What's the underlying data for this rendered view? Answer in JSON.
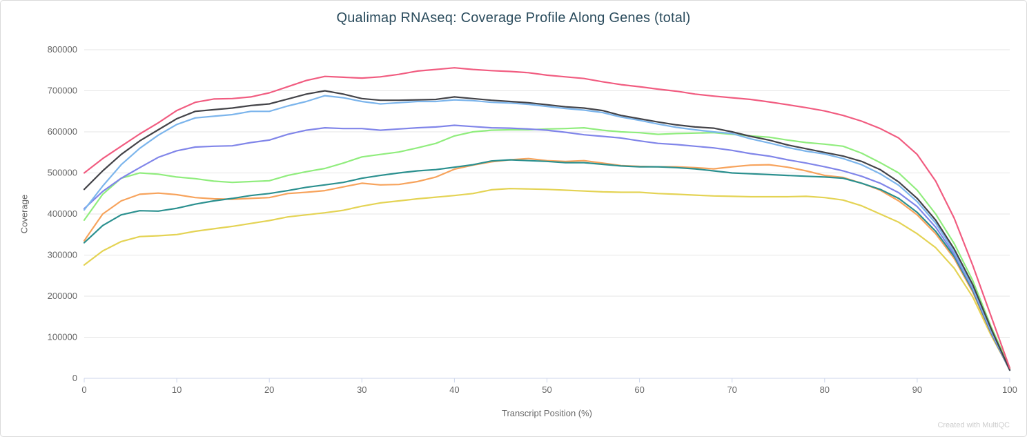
{
  "page": {
    "credit": "Created with MultiQC"
  },
  "chart_data": {
    "type": "line",
    "title": "Qualimap RNAseq: Coverage Profile Along Genes (total)",
    "xlabel": "Transcript Position (%)",
    "ylabel": "Coverage",
    "xlim": [
      0,
      100
    ],
    "ylim": [
      0,
      800000
    ],
    "xticks": [
      0,
      10,
      20,
      30,
      40,
      50,
      60,
      70,
      80,
      90,
      100
    ],
    "yticks": [
      0,
      100000,
      200000,
      300000,
      400000,
      500000,
      600000,
      700000,
      800000
    ],
    "grid": "horizontal",
    "legend": "none",
    "x": [
      0,
      2,
      4,
      6,
      8,
      10,
      12,
      14,
      16,
      18,
      20,
      22,
      24,
      26,
      28,
      30,
      32,
      34,
      36,
      38,
      40,
      42,
      44,
      46,
      48,
      50,
      52,
      54,
      56,
      58,
      60,
      62,
      64,
      66,
      68,
      70,
      72,
      74,
      76,
      78,
      80,
      82,
      84,
      86,
      88,
      90,
      92,
      94,
      96,
      98,
      100
    ],
    "series": [
      {
        "name": "yellow",
        "color": "#e4d354",
        "values": [
          276000,
          310000,
          333000,
          345000,
          347000,
          350000,
          358000,
          364000,
          370000,
          377000,
          384000,
          393000,
          398000,
          403000,
          409000,
          419000,
          427000,
          432000,
          437000,
          441000,
          445000,
          450000,
          459000,
          462000,
          461000,
          460000,
          458000,
          456000,
          454000,
          453000,
          453000,
          450000,
          448000,
          446000,
          444000,
          443000,
          442000,
          442000,
          442000,
          443000,
          440000,
          434000,
          420000,
          400000,
          380000,
          352000,
          318000,
          268000,
          198000,
          104000,
          22000
        ]
      },
      {
        "name": "orange",
        "color": "#f7a35c",
        "values": [
          335000,
          400000,
          432000,
          448000,
          451000,
          447000,
          440000,
          437000,
          436000,
          438000,
          440000,
          450000,
          453000,
          457000,
          466000,
          475000,
          471000,
          472000,
          479000,
          490000,
          509000,
          519000,
          527000,
          532000,
          535000,
          530000,
          528000,
          530000,
          524000,
          518000,
          516000,
          515000,
          515000,
          513000,
          510000,
          515000,
          519000,
          520000,
          514000,
          505000,
          494000,
          489000,
          475000,
          458000,
          432000,
          398000,
          352000,
          292000,
          210000,
          108000,
          20000
        ]
      },
      {
        "name": "teal",
        "color": "#2b908f",
        "values": [
          330000,
          372000,
          398000,
          408000,
          407000,
          414000,
          424000,
          432000,
          438000,
          445000,
          450000,
          457000,
          465000,
          471000,
          477000,
          487000,
          494000,
          500000,
          505000,
          508000,
          514000,
          520000,
          529000,
          532000,
          530000,
          528000,
          525000,
          525000,
          521000,
          517000,
          515000,
          515000,
          513000,
          510000,
          505000,
          500000,
          498000,
          496000,
          494000,
          492000,
          490000,
          487000,
          475000,
          460000,
          438000,
          404000,
          358000,
          297000,
          214000,
          110000,
          20000
        ]
      },
      {
        "name": "light-green",
        "color": "#90ed7d",
        "values": [
          385000,
          448000,
          487000,
          500000,
          497000,
          490000,
          486000,
          480000,
          477000,
          479000,
          481000,
          494000,
          503000,
          511000,
          524000,
          539000,
          545000,
          551000,
          561000,
          572000,
          590000,
          600000,
          604000,
          605000,
          605000,
          607000,
          608000,
          610000,
          604000,
          600000,
          598000,
          594000,
          596000,
          597000,
          598000,
          594000,
          590000,
          587000,
          580000,
          574000,
          570000,
          565000,
          548000,
          525000,
          500000,
          458000,
          400000,
          328000,
          238000,
          125000,
          25000
        ]
      },
      {
        "name": "purple",
        "color": "#8085e9",
        "values": [
          413000,
          455000,
          487000,
          513000,
          538000,
          554000,
          563000,
          565000,
          566000,
          574000,
          580000,
          594000,
          604000,
          610000,
          608000,
          608000,
          604000,
          607000,
          610000,
          612000,
          616000,
          613000,
          610000,
          609000,
          607000,
          604000,
          599000,
          593000,
          589000,
          585000,
          578000,
          572000,
          569000,
          565000,
          561000,
          555000,
          547000,
          541000,
          532000,
          524000,
          515000,
          505000,
          492000,
          475000,
          452000,
          418000,
          368000,
          302000,
          218000,
          112000,
          20000
        ]
      },
      {
        "name": "light-blue",
        "color": "#7cb5ec",
        "values": [
          410000,
          468000,
          520000,
          560000,
          592000,
          618000,
          634000,
          638000,
          642000,
          650000,
          650000,
          663000,
          674000,
          688000,
          683000,
          674000,
          668000,
          671000,
          674000,
          674000,
          678000,
          676000,
          672000,
          670000,
          667000,
          662000,
          657000,
          653000,
          647000,
          636000,
          628000,
          619000,
          611000,
          605000,
          600000,
          596000,
          583000,
          573000,
          562000,
          553000,
          546000,
          535000,
          520000,
          498000,
          470000,
          430000,
          378000,
          308000,
          222000,
          115000,
          20000
        ]
      },
      {
        "name": "dark-gray",
        "color": "#434348",
        "values": [
          460000,
          505000,
          545000,
          578000,
          605000,
          632000,
          650000,
          654000,
          658000,
          664000,
          668000,
          680000,
          692000,
          700000,
          692000,
          681000,
          677000,
          677000,
          678000,
          679000,
          685000,
          681000,
          677000,
          674000,
          671000,
          666000,
          661000,
          658000,
          652000,
          640000,
          632000,
          624000,
          617000,
          612000,
          609000,
          600000,
          589000,
          580000,
          568000,
          559000,
          550000,
          541000,
          528000,
          508000,
          478000,
          438000,
          385000,
          315000,
          228000,
          120000,
          20000
        ]
      },
      {
        "name": "pink",
        "color": "#f15c80",
        "values": [
          500000,
          535000,
          565000,
          595000,
          622000,
          652000,
          672000,
          680000,
          681000,
          685000,
          695000,
          710000,
          725000,
          735000,
          733000,
          731000,
          734000,
          740000,
          748000,
          752000,
          756000,
          752000,
          749000,
          747000,
          744000,
          738000,
          734000,
          730000,
          722000,
          715000,
          710000,
          704000,
          699000,
          692000,
          687000,
          683000,
          679000,
          673000,
          666000,
          659000,
          651000,
          640000,
          626000,
          608000,
          585000,
          545000,
          480000,
          390000,
          275000,
          150000,
          25000
        ]
      }
    ]
  }
}
